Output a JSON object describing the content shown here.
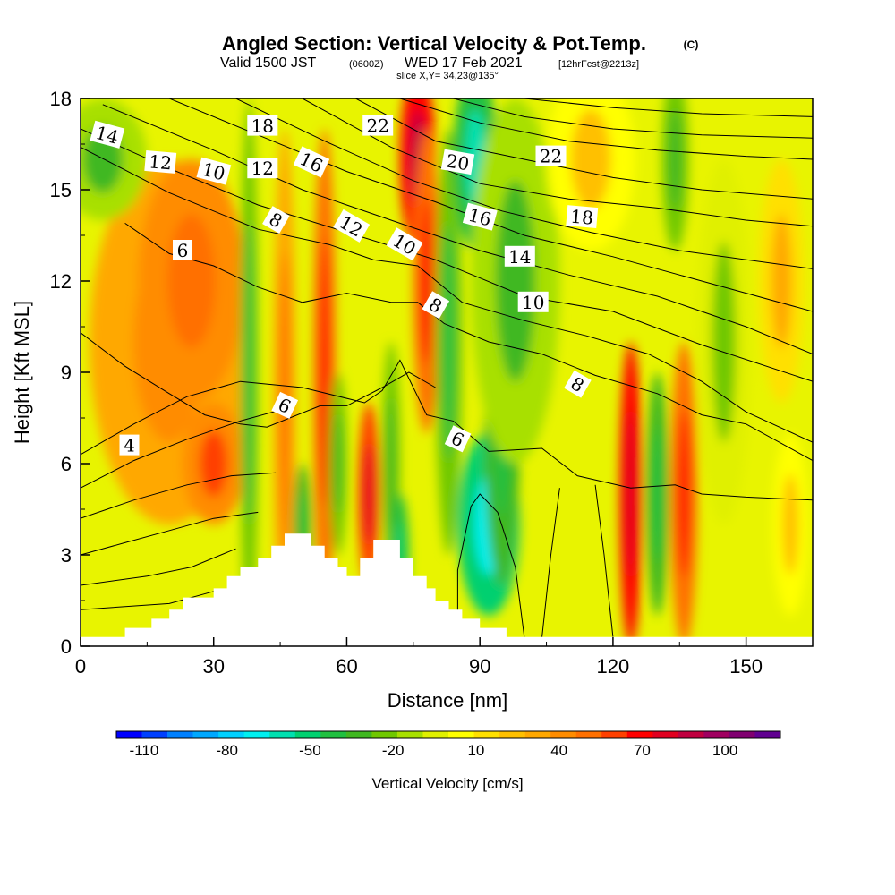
{
  "title": {
    "main": "Angled Section: Vertical Velocity & Pot.Temp.",
    "c": "(C)",
    "valid_a": "Valid 1500 JST",
    "valid_b": "(0600Z)",
    "valid_c": "WED 17 Feb 2021",
    "valid_d": "[12hrFcst@2213z]",
    "slice": "slice X,Y= 34,23@135°"
  },
  "chart_data": {
    "type": "heatmap",
    "xlabel": "Distance [nm]",
    "ylabel": "Height [Kft MSL]",
    "xlim": [
      0,
      165
    ],
    "ylim": [
      0,
      18
    ],
    "x_ticks": [
      "0",
      "30",
      "60",
      "90",
      "120",
      "150"
    ],
    "y_ticks": [
      "0",
      "3",
      "6",
      "9",
      "12",
      "15",
      "18"
    ],
    "fill_variable": "Vertical Velocity [cm/s]",
    "contour_variable": "Pot.Temp. (C)",
    "colorbar": {
      "label": "Vertical Velocity [cm/s]",
      "tick_labels": [
        "-110",
        "-80",
        "-50",
        "-20",
        "10",
        "40",
        "70",
        "100"
      ],
      "tick_values": [
        -110,
        -80,
        -50,
        -20,
        10,
        40,
        70,
        100
      ],
      "range": [
        -120,
        120
      ],
      "colors": [
        "#0000ff",
        "#0040ff",
        "#0080ff",
        "#00a8ff",
        "#00d0ff",
        "#00f0f0",
        "#00e0b0",
        "#00d070",
        "#20c040",
        "#40b820",
        "#70c800",
        "#a8e000",
        "#e0f000",
        "#ffff00",
        "#ffe000",
        "#ffc000",
        "#ffa800",
        "#ff8c00",
        "#ff7000",
        "#ff4000",
        "#ff0000",
        "#e00020",
        "#c00040",
        "#a00060",
        "#800070",
        "#600090"
      ]
    },
    "terrain_kft": [
      [
        0,
        0.3
      ],
      [
        10,
        0.3
      ],
      [
        10,
        0.6
      ],
      [
        16,
        0.6
      ],
      [
        16,
        0.9
      ],
      [
        20,
        0.9
      ],
      [
        20,
        1.2
      ],
      [
        23,
        1.2
      ],
      [
        23,
        1.6
      ],
      [
        30,
        1.6
      ],
      [
        30,
        1.9
      ],
      [
        33,
        1.9
      ],
      [
        33,
        2.3
      ],
      [
        36,
        2.3
      ],
      [
        36,
        2.6
      ],
      [
        40,
        2.6
      ],
      [
        40,
        2.9
      ],
      [
        43,
        2.9
      ],
      [
        43,
        3.3
      ],
      [
        46,
        3.3
      ],
      [
        46,
        3.7
      ],
      [
        52,
        3.7
      ],
      [
        52,
        3.3
      ],
      [
        55,
        3.3
      ],
      [
        55,
        2.9
      ],
      [
        58,
        2.9
      ],
      [
        58,
        2.6
      ],
      [
        60,
        2.6
      ],
      [
        60,
        2.3
      ],
      [
        63,
        2.3
      ],
      [
        63,
        2.9
      ],
      [
        66,
        2.9
      ],
      [
        66,
        3.5
      ],
      [
        72,
        3.5
      ],
      [
        72,
        2.9
      ],
      [
        75,
        2.9
      ],
      [
        75,
        2.3
      ],
      [
        78,
        2.3
      ],
      [
        78,
        1.9
      ],
      [
        80,
        1.9
      ],
      [
        80,
        1.5
      ],
      [
        83,
        1.5
      ],
      [
        83,
        1.2
      ],
      [
        86,
        1.2
      ],
      [
        86,
        0.9
      ],
      [
        90,
        0.9
      ],
      [
        90,
        0.6
      ],
      [
        96,
        0.6
      ],
      [
        96,
        0.3
      ],
      [
        165,
        0.3
      ]
    ],
    "vv_cells": [
      {
        "x": 20,
        "y": 10,
        "rx": 18,
        "ry": 6,
        "v": 30
      },
      {
        "x": 25,
        "y": 12,
        "rx": 12,
        "ry": 4,
        "v": 40
      },
      {
        "x": 30,
        "y": 6,
        "rx": 7,
        "ry": 2,
        "v": 45
      },
      {
        "x": 5,
        "y": 16,
        "rx": 10,
        "ry": 2,
        "v": -15
      },
      {
        "x": 38,
        "y": 9,
        "rx": 2,
        "ry": 9,
        "v": -25
      },
      {
        "x": 46,
        "y": 8,
        "rx": 2.5,
        "ry": 9,
        "v": 35
      },
      {
        "x": 50,
        "y": 4,
        "rx": 2,
        "ry": 2,
        "v": -30
      },
      {
        "x": 55,
        "y": 9,
        "rx": 2.5,
        "ry": 8,
        "v": 50
      },
      {
        "x": 58,
        "y": 6,
        "rx": 2,
        "ry": 3,
        "v": -20
      },
      {
        "x": 65,
        "y": 5,
        "rx": 2.5,
        "ry": 3,
        "v": 60
      },
      {
        "x": 70,
        "y": 6,
        "rx": 2,
        "ry": 4,
        "v": -20
      },
      {
        "x": 72,
        "y": 3,
        "rx": 2,
        "ry": 2,
        "v": -40
      },
      {
        "x": 76,
        "y": 16,
        "rx": 4,
        "ry": 3,
        "v": 70
      },
      {
        "x": 78,
        "y": 12,
        "rx": 3,
        "ry": 5,
        "v": 50
      },
      {
        "x": 83,
        "y": 10,
        "rx": 3,
        "ry": 7,
        "v": -25
      },
      {
        "x": 89,
        "y": 16,
        "rx": 5,
        "ry": 3,
        "v": -45
      },
      {
        "x": 92,
        "y": 4,
        "rx": 7,
        "ry": 3,
        "v": -50
      },
      {
        "x": 95,
        "y": 7,
        "rx": 4,
        "ry": 5,
        "v": -30
      },
      {
        "x": 98,
        "y": 12,
        "rx": 10,
        "ry": 6,
        "v": -15
      },
      {
        "x": 115,
        "y": 16,
        "rx": 10,
        "ry": 3,
        "v": 5
      },
      {
        "x": 124,
        "y": 5,
        "rx": 2.5,
        "ry": 5,
        "v": 65
      },
      {
        "x": 130,
        "y": 5,
        "rx": 2.5,
        "ry": 4,
        "v": -30
      },
      {
        "x": 136,
        "y": 5,
        "rx": 3,
        "ry": 5,
        "v": 55
      },
      {
        "x": 134,
        "y": 16,
        "rx": 3,
        "ry": 3,
        "v": -20
      },
      {
        "x": 145,
        "y": 10,
        "rx": 6,
        "ry": 6,
        "v": -5
      },
      {
        "x": 158,
        "y": 12,
        "rx": 5,
        "ry": 4,
        "v": 15
      },
      {
        "x": 160,
        "y": 4,
        "rx": 4,
        "ry": 3,
        "v": 5
      }
    ],
    "contour_labels": [
      {
        "text": "14",
        "x": 6,
        "y": 16.8,
        "rot": 15
      },
      {
        "text": "12",
        "x": 18,
        "y": 15.9,
        "rot": 5
      },
      {
        "text": "10",
        "x": 30,
        "y": 15.6,
        "rot": 15
      },
      {
        "text": "18",
        "x": 41,
        "y": 17.1,
        "rot": 0
      },
      {
        "text": "12",
        "x": 41,
        "y": 15.7,
        "rot": 0
      },
      {
        "text": "16",
        "x": 52,
        "y": 15.9,
        "rot": 25
      },
      {
        "text": "8",
        "x": 44,
        "y": 14,
        "rot": 30
      },
      {
        "text": "22",
        "x": 67,
        "y": 17.1,
        "rot": 0
      },
      {
        "text": "12",
        "x": 61,
        "y": 13.8,
        "rot": 30
      },
      {
        "text": "10",
        "x": 73,
        "y": 13.2,
        "rot": 30
      },
      {
        "text": "20",
        "x": 85,
        "y": 15.9,
        "rot": 10
      },
      {
        "text": "16",
        "x": 90,
        "y": 14.1,
        "rot": 15
      },
      {
        "text": "22",
        "x": 106,
        "y": 16.1,
        "rot": 0
      },
      {
        "text": "18",
        "x": 113,
        "y": 14.1,
        "rot": 5
      },
      {
        "text": "14",
        "x": 99,
        "y": 12.8,
        "rot": 0
      },
      {
        "text": "10",
        "x": 102,
        "y": 11.3,
        "rot": 0
      },
      {
        "text": "6",
        "x": 23,
        "y": 13,
        "rot": 0
      },
      {
        "text": "8",
        "x": 80,
        "y": 11.2,
        "rot": 30
      },
      {
        "text": "8",
        "x": 112,
        "y": 8.6,
        "rot": 30
      },
      {
        "text": "6",
        "x": 46,
        "y": 7.9,
        "rot": 25
      },
      {
        "text": "6",
        "x": 85,
        "y": 6.8,
        "rot": 25
      },
      {
        "text": "4",
        "x": 11,
        "y": 6.6,
        "rot": 0
      }
    ],
    "contours": [
      [
        [
          0,
          1.2
        ],
        [
          20,
          1.4
        ],
        [
          30,
          1.8
        ]
      ],
      [
        [
          0,
          2
        ],
        [
          15,
          2.3
        ],
        [
          25,
          2.6
        ],
        [
          35,
          3.2
        ]
      ],
      [
        [
          0,
          3
        ],
        [
          10,
          3.4
        ],
        [
          20,
          3.8
        ],
        [
          30,
          4.2
        ],
        [
          40,
          4.4
        ]
      ],
      [
        [
          0,
          4.2
        ],
        [
          12,
          4.8
        ],
        [
          24,
          5.3
        ],
        [
          34,
          5.6
        ],
        [
          44,
          5.7
        ]
      ],
      [
        [
          0,
          5.2
        ],
        [
          12,
          6.1
        ],
        [
          24,
          6.8
        ],
        [
          36,
          7.4
        ],
        [
          46,
          7.8
        ]
      ],
      [
        [
          0,
          6.3
        ],
        [
          12,
          7.3
        ],
        [
          24,
          8.2
        ],
        [
          36,
          8.7
        ],
        [
          50,
          8.5
        ],
        [
          64,
          8.0
        ],
        [
          68,
          8.4
        ],
        [
          72,
          9.4
        ],
        [
          78,
          7.6
        ],
        [
          84,
          7.4
        ],
        [
          92,
          6.4
        ],
        [
          104,
          6.5
        ],
        [
          112,
          5.6
        ],
        [
          124,
          5.2
        ],
        [
          134,
          5.3
        ],
        [
          140,
          5.0
        ],
        [
          150,
          4.9
        ],
        [
          165,
          4.8
        ]
      ],
      [
        [
          0,
          10.3
        ],
        [
          10,
          9.2
        ],
        [
          20,
          8.3
        ],
        [
          28,
          7.6
        ],
        [
          36,
          7.3
        ],
        [
          42,
          7.2
        ],
        [
          54,
          7.9
        ],
        [
          60,
          7.9
        ],
        [
          68,
          8.5
        ],
        [
          74,
          9.0
        ],
        [
          80,
          8.5
        ]
      ],
      [
        [
          85,
          0.3
        ],
        [
          85,
          2.5
        ],
        [
          88,
          4.6
        ],
        [
          90,
          5.0
        ],
        [
          94,
          4.4
        ],
        [
          98,
          2.6
        ],
        [
          100,
          0.3
        ]
      ],
      [
        [
          104,
          0.3
        ],
        [
          106,
          3
        ],
        [
          108,
          5.2
        ]
      ],
      [
        [
          120,
          0.3
        ],
        [
          118,
          3
        ],
        [
          116,
          5.3
        ]
      ],
      [
        [
          10,
          13.9
        ],
        [
          20,
          12.9
        ],
        [
          30,
          12.5
        ],
        [
          40,
          11.8
        ],
        [
          50,
          11.3
        ],
        [
          60,
          11.6
        ],
        [
          70,
          11.3
        ],
        [
          76,
          11.3
        ],
        [
          82,
          10.6
        ],
        [
          92,
          10.0
        ],
        [
          104,
          9.6
        ],
        [
          116,
          8.9
        ],
        [
          130,
          8.3
        ],
        [
          140,
          7.6
        ],
        [
          150,
          7.3
        ],
        [
          165,
          6.1
        ]
      ],
      [
        [
          0,
          16.4
        ],
        [
          20,
          14.9
        ],
        [
          40,
          13.7
        ],
        [
          56,
          13.2
        ],
        [
          66,
          12.7
        ],
        [
          76,
          12.5
        ],
        [
          86,
          11.3
        ],
        [
          100,
          10.7
        ],
        [
          114,
          10.2
        ],
        [
          128,
          9.6
        ],
        [
          140,
          8.7
        ],
        [
          150,
          7.7
        ],
        [
          165,
          6.7
        ]
      ],
      [
        [
          0,
          17
        ],
        [
          20,
          15.7
        ],
        [
          40,
          14.5
        ],
        [
          60,
          13.6
        ],
        [
          80,
          12.7
        ],
        [
          100,
          11.5
        ],
        [
          120,
          11.0
        ],
        [
          140,
          9.9
        ],
        [
          165,
          8.7
        ]
      ],
      [
        [
          5,
          17.8
        ],
        [
          30,
          16.3
        ],
        [
          50,
          15.0
        ],
        [
          70,
          14.0
        ],
        [
          90,
          13.0
        ],
        [
          110,
          12.2
        ],
        [
          130,
          11.5
        ],
        [
          150,
          10.5
        ],
        [
          165,
          9.6
        ]
      ],
      [
        [
          20,
          18
        ],
        [
          40,
          16.8
        ],
        [
          60,
          15.6
        ],
        [
          80,
          14.6
        ],
        [
          100,
          13.5
        ],
        [
          120,
          12.8
        ],
        [
          140,
          12.0
        ],
        [
          165,
          11.0
        ]
      ],
      [
        [
          35,
          18
        ],
        [
          55,
          16.6
        ],
        [
          75,
          15.3
        ],
        [
          95,
          14.3
        ],
        [
          115,
          13.6
        ],
        [
          135,
          13.0
        ],
        [
          165,
          12.4
        ]
      ],
      [
        [
          50,
          18
        ],
        [
          70,
          16.4
        ],
        [
          90,
          15.2
        ],
        [
          110,
          14.7
        ],
        [
          130,
          14.4
        ],
        [
          150,
          14.0
        ],
        [
          165,
          13.8
        ]
      ],
      [
        [
          62,
          18
        ],
        [
          80,
          16.6
        ],
        [
          100,
          16.0
        ],
        [
          120,
          15.4
        ],
        [
          140,
          15.0
        ],
        [
          165,
          14.7
        ]
      ],
      [
        [
          72,
          18
        ],
        [
          90,
          17.2
        ],
        [
          110,
          16.6
        ],
        [
          130,
          16.3
        ],
        [
          150,
          16.1
        ],
        [
          165,
          16.0
        ]
      ],
      [
        [
          84,
          18
        ],
        [
          100,
          17.4
        ],
        [
          120,
          17.0
        ],
        [
          140,
          16.8
        ],
        [
          165,
          16.7
        ]
      ],
      [
        [
          100,
          18
        ],
        [
          120,
          17.7
        ],
        [
          140,
          17.5
        ],
        [
          165,
          17.4
        ]
      ]
    ]
  }
}
